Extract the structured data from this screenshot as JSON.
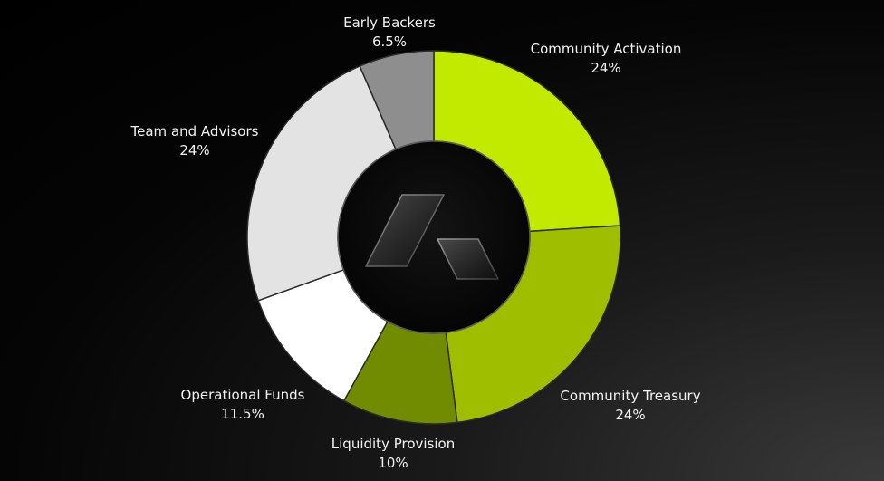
{
  "chart_data": {
    "type": "pie",
    "donut": true,
    "title": "",
    "slices": [
      {
        "label": "Community Activation",
        "value": 24,
        "value_label": "24%",
        "color": "#c2e900"
      },
      {
        "label": "Community Treasury",
        "value": 24,
        "value_label": "24%",
        "color": "#9fbe00"
      },
      {
        "label": "Liquidity Provision",
        "value": 10,
        "value_label": "10%",
        "color": "#718c00"
      },
      {
        "label": "Operational Funds",
        "value": 11.5,
        "value_label": "11.5%",
        "color": "#ffffff"
      },
      {
        "label": "Team and Advisors",
        "value": 24,
        "value_label": "24%",
        "color": "#e3e3e3"
      },
      {
        "label": "Early Backers",
        "value": 6.5,
        "value_label": "6.5%",
        "color": "#8e8e8e"
      }
    ],
    "legend": "none",
    "center_logo": "angled-a-logo"
  }
}
